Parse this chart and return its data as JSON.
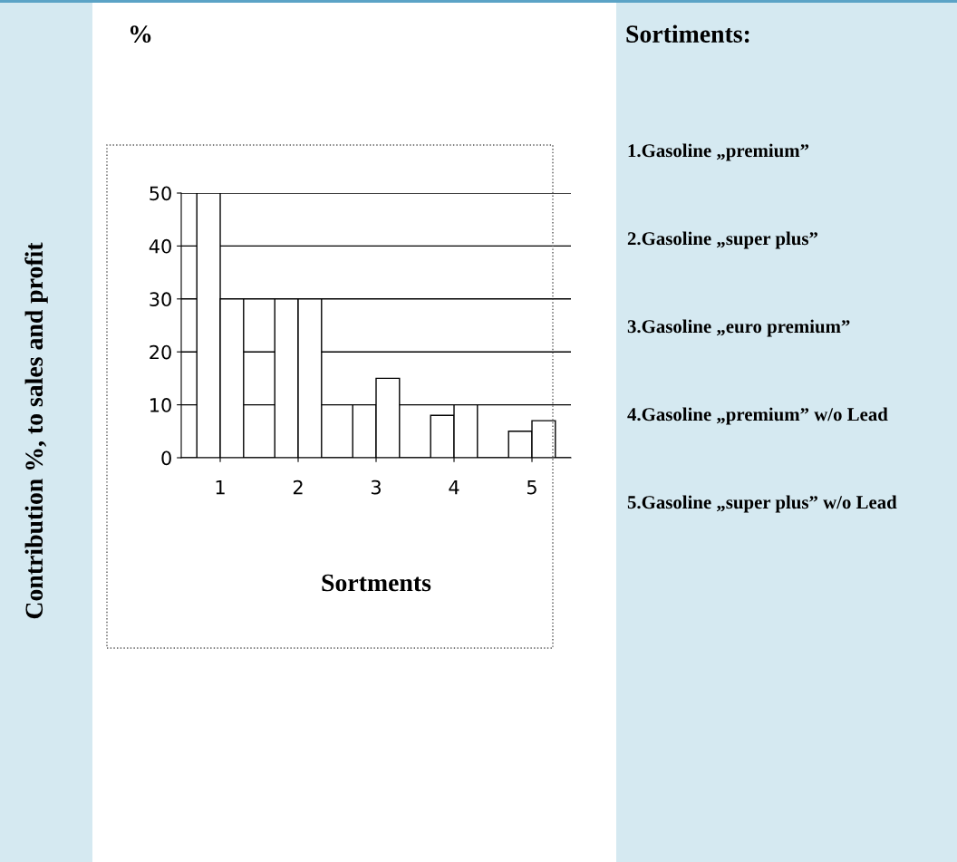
{
  "chart_data": {
    "type": "bar",
    "ylabel": "Contribution %, to sales and profit",
    "xlabel": "Sortments",
    "categories": [
      "1",
      "2",
      "3",
      "4",
      "5"
    ],
    "series": [
      {
        "color": "#ffffff",
        "values": [
          50,
          30,
          10,
          8,
          5
        ]
      },
      {
        "color": "#ffffff",
        "values": [
          30,
          30,
          15,
          10,
          7
        ]
      }
    ],
    "ylim": [
      0,
      50
    ],
    "yticks": [
      0,
      10,
      20,
      30,
      40,
      50
    ],
    "grid": "y",
    "annotations": [
      "%",
      "Sortiments:",
      "1.Gasoline „premium”",
      "2.Gasoline „super plus”",
      "3.Gasoline „euro premium”",
      "4.Gasoline „premium” w/o Lead",
      "5.Gasoline „super plus” w/o Lead"
    ]
  }
}
